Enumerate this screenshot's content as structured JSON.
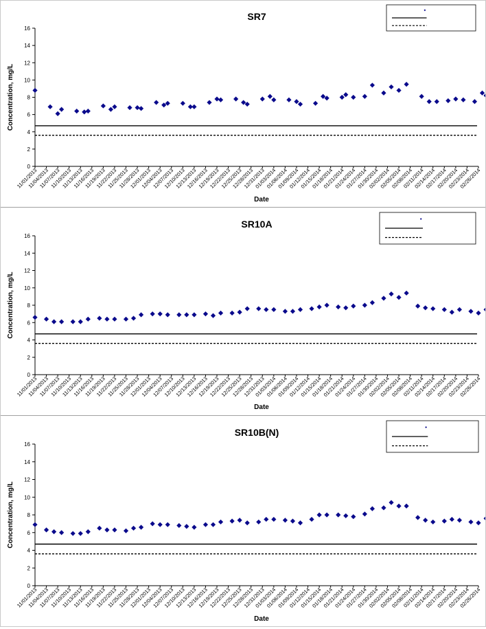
{
  "x_ticks": [
    "11/01/2013",
    "11/04/2013",
    "11/07/2013",
    "11/10/2013",
    "11/13/2013",
    "11/16/2013",
    "11/19/2013",
    "11/22/2013",
    "11/25/2013",
    "11/28/2013",
    "12/01/2013",
    "12/04/2013",
    "12/07/2013",
    "12/10/2013",
    "12/13/2013",
    "12/16/2013",
    "12/19/2013",
    "12/22/2013",
    "12/25/2013",
    "12/28/2013",
    "12/31/2013",
    "01/03/2014",
    "01/06/2014",
    "01/09/2014",
    "01/12/2014",
    "01/15/2014",
    "01/18/2014",
    "01/21/2014",
    "01/24/2014",
    "01/27/2014",
    "01/30/2014",
    "02/02/2014",
    "02/05/2014",
    "02/08/2014",
    "02/11/2014",
    "02/14/2014",
    "02/17/2014",
    "02/20/2014",
    "02/23/2014",
    "02/26/2014"
  ],
  "chart_data": [
    {
      "type": "scatter",
      "title": "SR7",
      "xlabel": "Date",
      "ylabel": "Concentration, mg/L",
      "ylim": [
        0,
        16
      ],
      "yticks": [
        0,
        2,
        4,
        6,
        8,
        10,
        12,
        14,
        16
      ],
      "legend_position": "top-right",
      "points": [
        [
          "11/01/2013",
          8.8
        ],
        [
          "11/05/2013",
          6.9
        ],
        [
          "11/07/2013",
          6.1
        ],
        [
          "11/08/2013",
          6.6
        ],
        [
          "11/12/2013",
          6.4
        ],
        [
          "11/14/2013",
          6.3
        ],
        [
          "11/15/2013",
          6.4
        ],
        [
          "11/19/2013",
          7.0
        ],
        [
          "11/21/2013",
          6.6
        ],
        [
          "11/22/2013",
          6.9
        ],
        [
          "11/26/2013",
          6.8
        ],
        [
          "11/28/2013",
          6.8
        ],
        [
          "11/29/2013",
          6.7
        ],
        [
          "12/03/2013",
          7.4
        ],
        [
          "12/05/2013",
          7.1
        ],
        [
          "12/06/2013",
          7.3
        ],
        [
          "12/10/2013",
          7.3
        ],
        [
          "12/12/2013",
          6.9
        ],
        [
          "12/13/2013",
          6.9
        ],
        [
          "12/17/2013",
          7.4
        ],
        [
          "12/19/2013",
          7.8
        ],
        [
          "12/20/2013",
          7.7
        ],
        [
          "12/24/2013",
          7.8
        ],
        [
          "12/26/2013",
          7.4
        ],
        [
          "12/27/2013",
          7.2
        ],
        [
          "12/31/2013",
          7.8
        ],
        [
          "01/02/2014",
          8.1
        ],
        [
          "01/03/2014",
          7.7
        ],
        [
          "01/07/2014",
          7.7
        ],
        [
          "01/09/2014",
          7.5
        ],
        [
          "01/10/2014",
          7.2
        ],
        [
          "01/14/2014",
          7.3
        ],
        [
          "01/16/2014",
          8.1
        ],
        [
          "01/17/2014",
          7.9
        ],
        [
          "01/21/2014",
          8.0
        ],
        [
          "01/22/2014",
          8.3
        ],
        [
          "01/24/2014",
          8.0
        ],
        [
          "01/27/2014",
          8.1
        ],
        [
          "01/29/2014",
          9.4
        ],
        [
          "02/01/2014",
          8.5
        ],
        [
          "02/03/2014",
          9.2
        ],
        [
          "02/05/2014",
          8.8
        ],
        [
          "02/07/2014",
          9.5
        ],
        [
          "02/11/2014",
          8.1
        ],
        [
          "02/13/2014",
          7.5
        ],
        [
          "02/15/2014",
          7.5
        ],
        [
          "02/18/2014",
          7.6
        ],
        [
          "02/20/2014",
          7.8
        ],
        [
          "02/22/2014",
          7.7
        ],
        [
          "02/25/2014",
          7.5
        ],
        [
          "02/27/2014",
          8.5
        ],
        [
          "02/28/2014",
          8.2
        ]
      ],
      "hlines": [
        {
          "value": 4.7,
          "style": "solid"
        },
        {
          "value": 3.6,
          "style": "dashed"
        }
      ]
    },
    {
      "type": "scatter",
      "title": "SR10A",
      "xlabel": "Date",
      "ylabel": "Concentration, mg/L",
      "ylim": [
        0,
        16
      ],
      "yticks": [
        0,
        2,
        4,
        6,
        8,
        10,
        12,
        14,
        16
      ],
      "legend_position": "top-right",
      "points": [
        [
          "11/01/2013",
          6.6
        ],
        [
          "11/04/2013",
          6.4
        ],
        [
          "11/06/2013",
          6.1
        ],
        [
          "11/08/2013",
          6.1
        ],
        [
          "11/11/2013",
          6.1
        ],
        [
          "11/13/2013",
          6.1
        ],
        [
          "11/15/2013",
          6.4
        ],
        [
          "11/18/2013",
          6.5
        ],
        [
          "11/20/2013",
          6.4
        ],
        [
          "11/22/2013",
          6.4
        ],
        [
          "11/25/2013",
          6.4
        ],
        [
          "11/27/2013",
          6.5
        ],
        [
          "11/29/2013",
          6.9
        ],
        [
          "12/02/2013",
          7.0
        ],
        [
          "12/04/2013",
          7.0
        ],
        [
          "12/06/2013",
          6.9
        ],
        [
          "12/09/2013",
          6.9
        ],
        [
          "12/11/2013",
          6.9
        ],
        [
          "12/13/2013",
          6.9
        ],
        [
          "12/16/2013",
          7.0
        ],
        [
          "12/18/2013",
          6.8
        ],
        [
          "12/20/2013",
          7.1
        ],
        [
          "12/23/2013",
          7.1
        ],
        [
          "12/25/2013",
          7.2
        ],
        [
          "12/27/2013",
          7.6
        ],
        [
          "12/30/2013",
          7.6
        ],
        [
          "01/01/2014",
          7.5
        ],
        [
          "01/03/2014",
          7.5
        ],
        [
          "01/06/2014",
          7.3
        ],
        [
          "01/08/2014",
          7.3
        ],
        [
          "01/10/2014",
          7.5
        ],
        [
          "01/13/2014",
          7.6
        ],
        [
          "01/15/2014",
          7.8
        ],
        [
          "01/17/2014",
          8.0
        ],
        [
          "01/20/2014",
          7.8
        ],
        [
          "01/22/2014",
          7.7
        ],
        [
          "01/24/2014",
          7.9
        ],
        [
          "01/27/2014",
          8.0
        ],
        [
          "01/29/2014",
          8.3
        ],
        [
          "02/01/2014",
          8.8
        ],
        [
          "02/03/2014",
          9.3
        ],
        [
          "02/05/2014",
          8.9
        ],
        [
          "02/07/2014",
          9.4
        ],
        [
          "02/10/2014",
          7.9
        ],
        [
          "02/12/2014",
          7.7
        ],
        [
          "02/14/2014",
          7.6
        ],
        [
          "02/17/2014",
          7.5
        ],
        [
          "02/19/2014",
          7.2
        ],
        [
          "02/21/2014",
          7.5
        ],
        [
          "02/24/2014",
          7.3
        ],
        [
          "02/26/2014",
          7.1
        ],
        [
          "02/28/2014",
          7.5
        ]
      ],
      "hlines": [
        {
          "value": 4.7,
          "style": "solid"
        },
        {
          "value": 3.6,
          "style": "dashed"
        }
      ]
    },
    {
      "type": "scatter",
      "title": "SR10B(N)",
      "xlabel": "Date",
      "ylabel": "Concentration, mg/L",
      "ylim": [
        0,
        16
      ],
      "yticks": [
        0,
        2,
        4,
        6,
        8,
        10,
        12,
        14,
        16
      ],
      "legend_position": "top-right",
      "points": [
        [
          "11/01/2013",
          6.9
        ],
        [
          "11/04/2013",
          6.3
        ],
        [
          "11/06/2013",
          6.1
        ],
        [
          "11/08/2013",
          6.0
        ],
        [
          "11/11/2013",
          5.9
        ],
        [
          "11/13/2013",
          5.9
        ],
        [
          "11/15/2013",
          6.1
        ],
        [
          "11/18/2013",
          6.5
        ],
        [
          "11/20/2013",
          6.3
        ],
        [
          "11/22/2013",
          6.3
        ],
        [
          "11/25/2013",
          6.2
        ],
        [
          "11/27/2013",
          6.5
        ],
        [
          "11/29/2013",
          6.6
        ],
        [
          "12/02/2013",
          7.0
        ],
        [
          "12/04/2013",
          6.9
        ],
        [
          "12/06/2013",
          6.9
        ],
        [
          "12/09/2013",
          6.8
        ],
        [
          "12/11/2013",
          6.7
        ],
        [
          "12/13/2013",
          6.6
        ],
        [
          "12/16/2013",
          6.9
        ],
        [
          "12/18/2013",
          6.9
        ],
        [
          "12/20/2013",
          7.2
        ],
        [
          "12/23/2013",
          7.3
        ],
        [
          "12/25/2013",
          7.4
        ],
        [
          "12/27/2013",
          7.1
        ],
        [
          "12/30/2013",
          7.2
        ],
        [
          "01/01/2014",
          7.5
        ],
        [
          "01/03/2014",
          7.5
        ],
        [
          "01/06/2014",
          7.4
        ],
        [
          "01/08/2014",
          7.3
        ],
        [
          "01/10/2014",
          7.1
        ],
        [
          "01/13/2014",
          7.5
        ],
        [
          "01/15/2014",
          8.0
        ],
        [
          "01/17/2014",
          8.0
        ],
        [
          "01/20/2014",
          8.0
        ],
        [
          "01/22/2014",
          7.9
        ],
        [
          "01/24/2014",
          7.8
        ],
        [
          "01/27/2014",
          8.1
        ],
        [
          "01/29/2014",
          8.7
        ],
        [
          "02/01/2014",
          8.8
        ],
        [
          "02/03/2014",
          9.4
        ],
        [
          "02/05/2014",
          9.0
        ],
        [
          "02/07/2014",
          9.0
        ],
        [
          "02/10/2014",
          7.7
        ],
        [
          "02/12/2014",
          7.4
        ],
        [
          "02/14/2014",
          7.2
        ],
        [
          "02/17/2014",
          7.3
        ],
        [
          "02/19/2014",
          7.5
        ],
        [
          "02/21/2014",
          7.4
        ],
        [
          "02/24/2014",
          7.2
        ],
        [
          "02/26/2014",
          7.1
        ],
        [
          "02/28/2014",
          7.6
        ]
      ],
      "hlines": [
        {
          "value": 4.7,
          "style": "solid"
        },
        {
          "value": 3.6,
          "style": "dashed"
        }
      ]
    }
  ],
  "colors": {
    "marker": "#0a0a8c",
    "line": "#000000",
    "axis": "#000000",
    "text": "#000000"
  }
}
